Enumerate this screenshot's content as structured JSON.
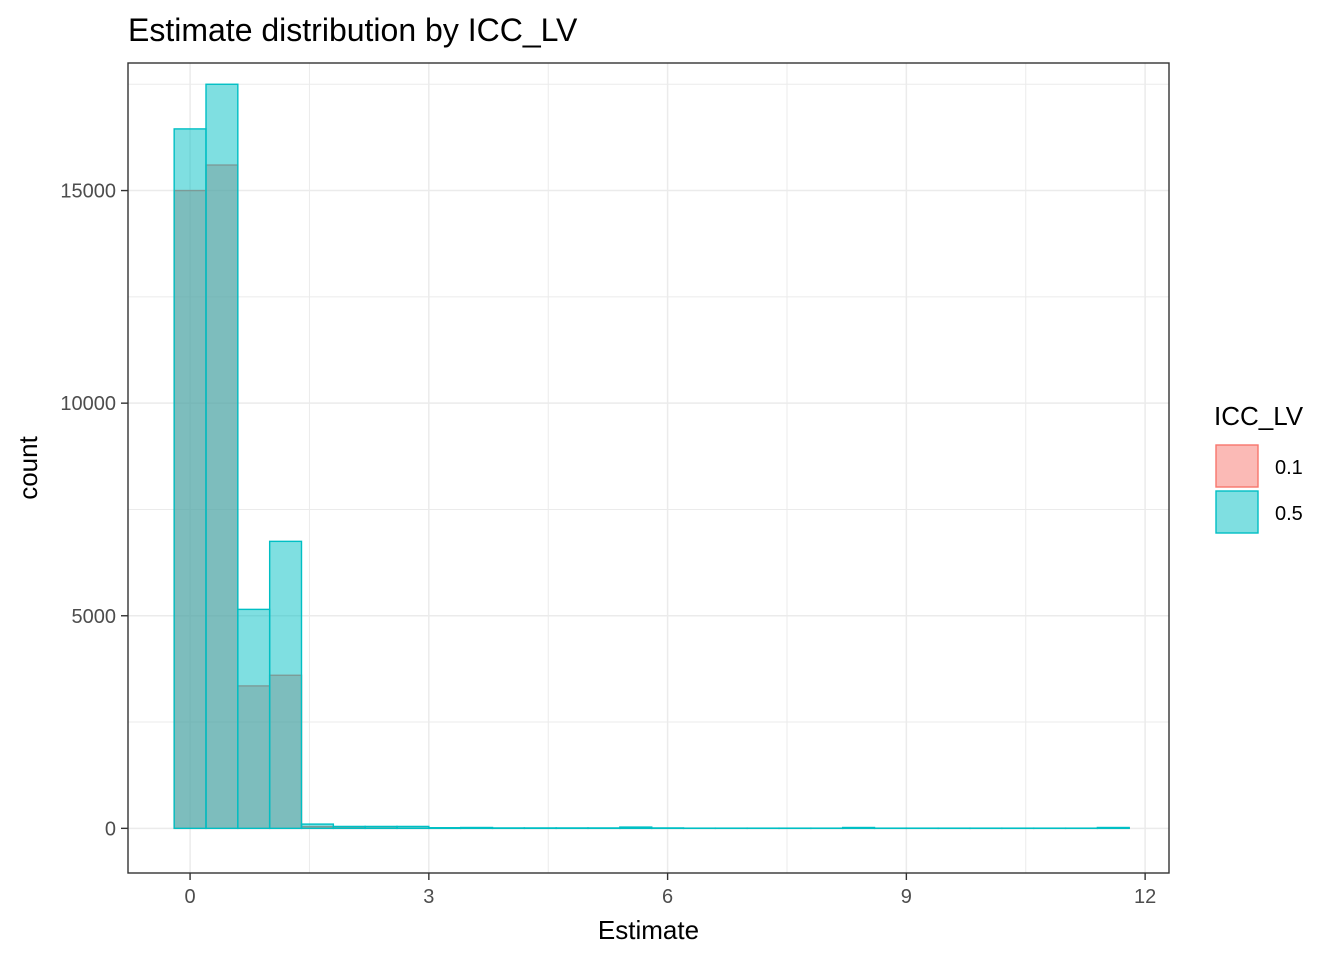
{
  "chart_data": {
    "type": "bar",
    "subtype": "overlaid histogram",
    "title": "Estimate distribution by ICC_LV",
    "xlabel": "Estimate",
    "ylabel": "count",
    "xlim": [
      -0.78,
      12.3
    ],
    "ylim": [
      -1050,
      18000
    ],
    "x_ticks": [
      0,
      3,
      6,
      9,
      12
    ],
    "x_tick_labels": [
      "0",
      "3",
      "6",
      "9",
      "12"
    ],
    "y_ticks": [
      0,
      5000,
      10000,
      15000
    ],
    "y_tick_labels": [
      "0",
      "5000",
      "10000",
      "15000"
    ],
    "grid": true,
    "legend": {
      "title": "ICC_LV",
      "position": "right",
      "entries": [
        "0.1",
        "0.5"
      ]
    },
    "bin_width": 0.4,
    "bin_start": -0.2,
    "series": [
      {
        "name": "0.1",
        "color": "#F8766D",
        "values": [
          15000,
          15600,
          3350,
          3600,
          40,
          15,
          10,
          5,
          3,
          3,
          3,
          2,
          2,
          2,
          25,
          2,
          2,
          2,
          2,
          2,
          2,
          2,
          2,
          2,
          2,
          2,
          2,
          2,
          2,
          2
        ]
      },
      {
        "name": "0.5",
        "color": "#00BFC4",
        "values": [
          16450,
          17500,
          5150,
          6750,
          100,
          45,
          45,
          45,
          15,
          20,
          10,
          10,
          10,
          10,
          30,
          10,
          5,
          5,
          5,
          5,
          5,
          20,
          5,
          5,
          5,
          5,
          5,
          5,
          5,
          20
        ]
      }
    ]
  }
}
